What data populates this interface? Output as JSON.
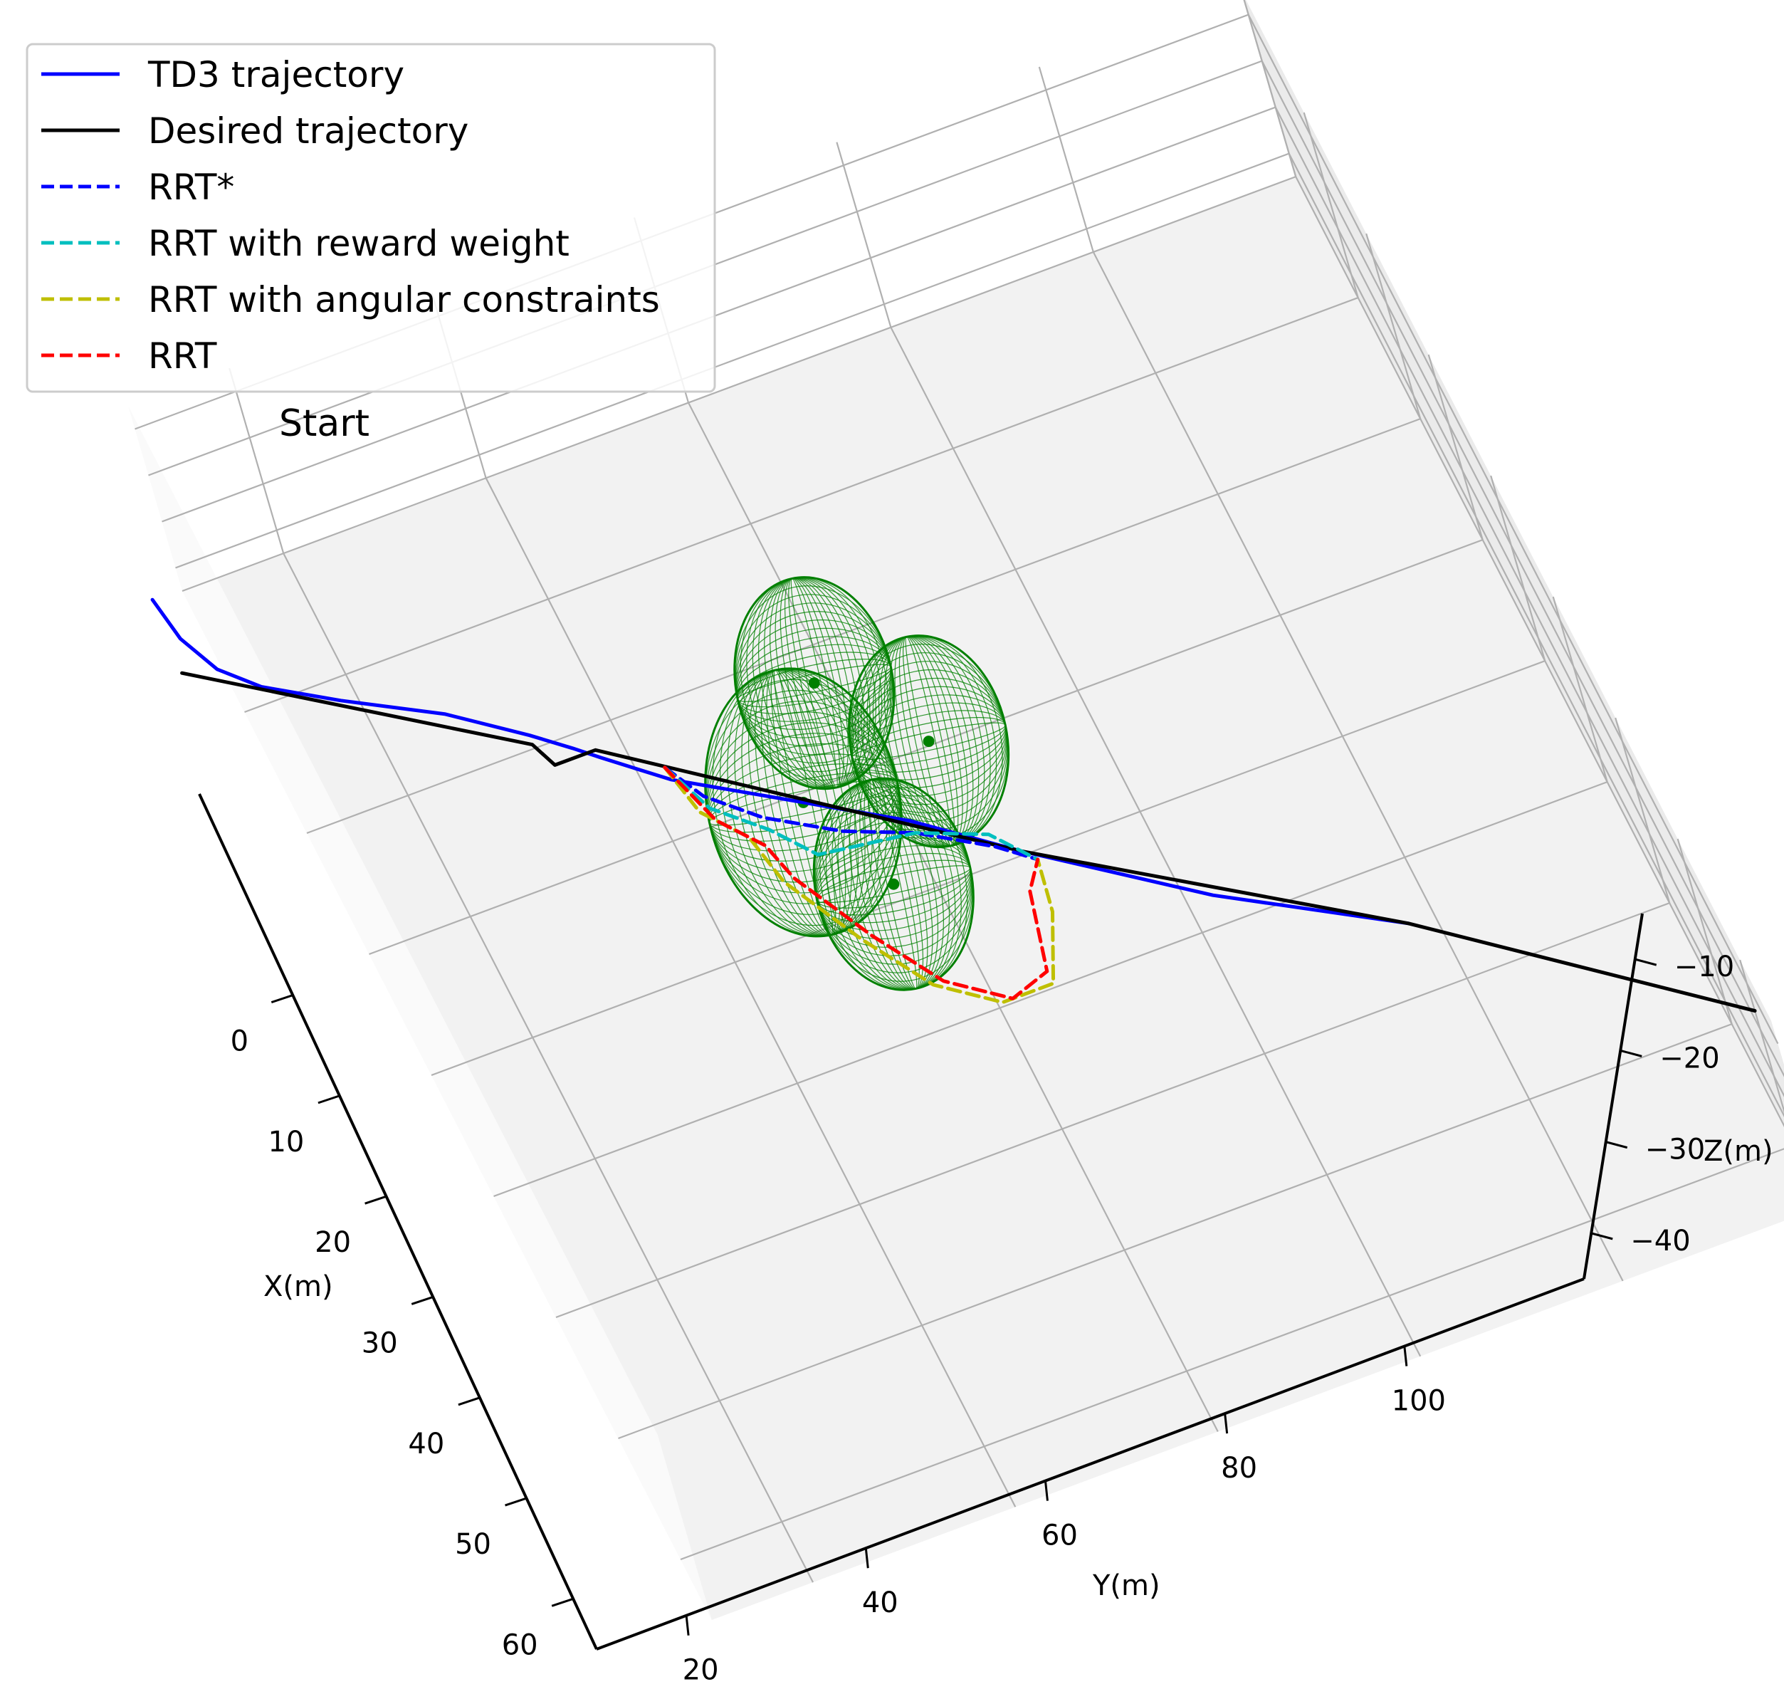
{
  "chart_data": {
    "type": "line",
    "projection": "3d",
    "title": "",
    "xlabel": "X(m)",
    "ylabel": "Y(m)",
    "zlabel": "Z(m)",
    "x_ticks": [
      "0",
      "10",
      "20",
      "30",
      "40",
      "50",
      "60"
    ],
    "y_ticks": [
      "20",
      "40",
      "60",
      "80",
      "100"
    ],
    "z_ticks": [
      "−10",
      "−20",
      "−30",
      "−40"
    ],
    "grid": true,
    "legend_position": "top-left",
    "annotation": "Start",
    "obstacle_color": "#008000",
    "series": [
      {
        "name": "TD3 trajectory",
        "color": "#0000ff",
        "style": "solid",
        "points": [
          [
            -7,
            4,
            -8
          ],
          [
            -5,
            5,
            -12
          ],
          [
            -3,
            7,
            -15
          ],
          [
            -1,
            10,
            -16
          ],
          [
            2,
            16,
            -16
          ],
          [
            6,
            24,
            -15
          ],
          [
            10,
            30,
            -14
          ],
          [
            12,
            33,
            -14
          ],
          [
            13,
            35,
            -15
          ],
          [
            16,
            40,
            -16
          ],
          [
            25,
            58,
            -16
          ],
          [
            30,
            66,
            -16
          ],
          [
            38,
            80,
            -16
          ],
          [
            45,
            95,
            -16
          ]
        ]
      },
      {
        "name": "Desired trajectory",
        "color": "#000000",
        "style": "solid",
        "points": [
          [
            -4,
            4,
            -16
          ],
          [
            10,
            30,
            -16
          ],
          [
            12,
            31,
            -16
          ],
          [
            12,
            35,
            -16
          ],
          [
            30,
            66,
            -16
          ],
          [
            45,
            95,
            -16
          ],
          [
            60,
            120,
            -16
          ]
        ]
      },
      {
        "name": "RRT*",
        "color": "#0000ff",
        "style": "dashed",
        "points": [
          [
            15,
            40,
            -16
          ],
          [
            18,
            42,
            -16
          ],
          [
            21,
            46,
            -16
          ],
          [
            24,
            52,
            -16
          ],
          [
            26,
            58,
            -16
          ],
          [
            29,
            64,
            -16
          ],
          [
            31,
            67,
            -16
          ]
        ]
      },
      {
        "name": "RRT with reward weight",
        "color": "#00bfbf",
        "style": "dashed",
        "points": [
          [
            15,
            40,
            -16
          ],
          [
            19,
            42,
            -16
          ],
          [
            22,
            46,
            -16
          ],
          [
            25,
            49,
            -16
          ],
          [
            26,
            58,
            -16
          ],
          [
            28,
            64,
            -16
          ],
          [
            31,
            67,
            -16
          ]
        ]
      },
      {
        "name": "RRT with angular constraints",
        "color": "#bfbf00",
        "style": "dashed",
        "points": [
          [
            15,
            40,
            -16
          ],
          [
            19,
            41,
            -16
          ],
          [
            22,
            44,
            -16
          ],
          [
            26,
            45,
            -16
          ],
          [
            32,
            49,
            -16
          ],
          [
            37,
            53,
            -16
          ],
          [
            40,
            58,
            -16
          ],
          [
            40,
            63,
            -16
          ],
          [
            35,
            66,
            -16
          ],
          [
            31,
            67,
            -16
          ]
        ]
      },
      {
        "name": "RRT",
        "color": "#ff0000",
        "style": "dashed",
        "points": [
          [
            15,
            40,
            -16
          ],
          [
            20,
            42,
            -16
          ],
          [
            23,
            45,
            -16
          ],
          [
            26,
            46,
            -16
          ],
          [
            32,
            50,
            -16
          ],
          [
            37,
            54,
            -16
          ],
          [
            40,
            59,
            -16
          ],
          [
            39,
            63,
            -16
          ],
          [
            33,
            65,
            -16
          ],
          [
            31,
            67,
            -16
          ]
        ]
      }
    ],
    "obstacles": [
      {
        "shape": "ellipsoid",
        "center": [
          21,
          50,
          -16
        ]
      },
      {
        "shape": "ellipsoid",
        "center": [
          13,
          56,
          -16
        ]
      },
      {
        "shape": "ellipsoid",
        "center": [
          20,
          63,
          -16
        ]
      },
      {
        "shape": "ellipsoid",
        "center": [
          29,
          54,
          -16
        ]
      }
    ]
  }
}
